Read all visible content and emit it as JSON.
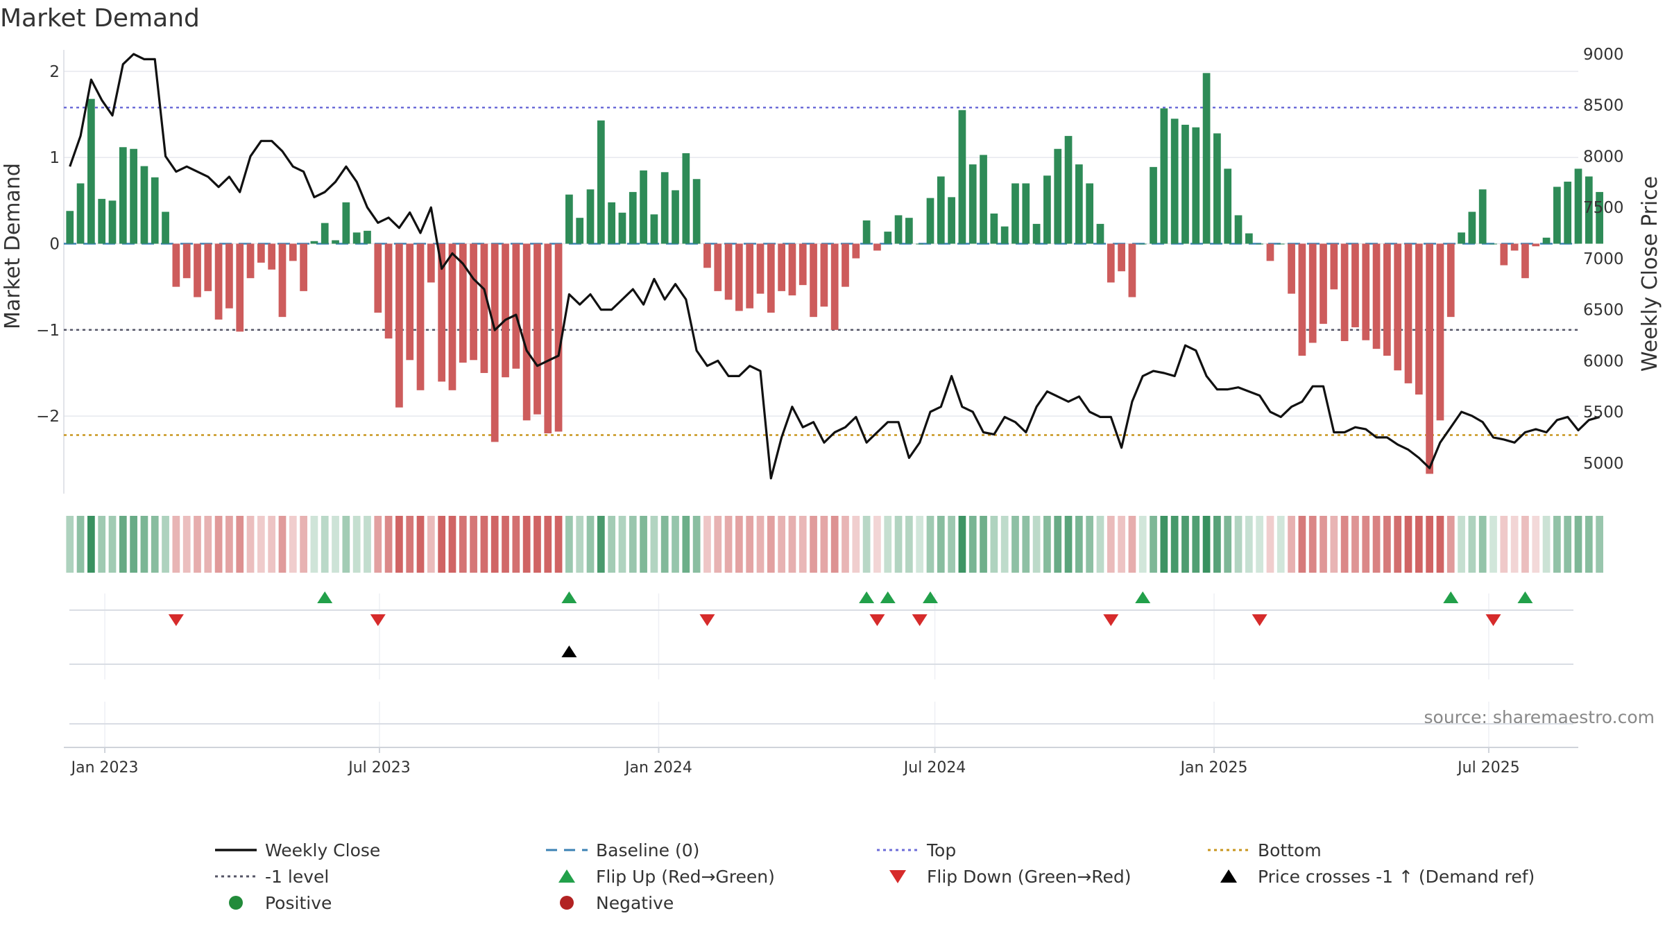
{
  "chart_data": {
    "type": "bar",
    "title": "Market Demand",
    "ylabel": "Market Demand",
    "y2label": "Weekly Close Price",
    "ylim": [
      -2.9,
      2.2
    ],
    "y_ticks": [
      2,
      1,
      0,
      -1,
      -2
    ],
    "y_tick_labels": [
      "2",
      "1",
      "0",
      "−1",
      "−2"
    ],
    "y2lim": [
      4700,
      9000
    ],
    "y2_ticks": [
      9000,
      8500,
      8000,
      7500,
      7000,
      6500,
      6000,
      5500,
      5000
    ],
    "x_start": "2022-12-05",
    "x_end": "2025-08-29",
    "x_ticks": [
      {
        "date": "2023-01-01",
        "label": "Jan 2023"
      },
      {
        "date": "2023-07-01",
        "label": "Jul 2023"
      },
      {
        "date": "2024-01-01",
        "label": "Jan 2024"
      },
      {
        "date": "2024-07-01",
        "label": "Jul 2024"
      },
      {
        "date": "2025-01-01",
        "label": "Jan 2025"
      },
      {
        "date": "2025-07-01",
        "label": "Jul 2025"
      }
    ],
    "first_week": "2022-12-09",
    "demand": [
      0.38,
      0.7,
      1.68,
      0.52,
      0.5,
      1.12,
      1.1,
      0.9,
      0.77,
      0.37,
      -0.5,
      -0.4,
      -0.62,
      -0.55,
      -0.88,
      -0.75,
      -1.02,
      -0.4,
      -0.22,
      -0.3,
      -0.85,
      -0.2,
      -0.55,
      0.03,
      0.24,
      0.04,
      0.48,
      0.13,
      0.15,
      -0.8,
      -1.1,
      -1.9,
      -1.35,
      -1.7,
      -0.45,
      -1.6,
      -1.7,
      -1.38,
      -1.35,
      -1.5,
      -2.3,
      -1.55,
      -1.45,
      -2.05,
      -1.98,
      -2.2,
      -2.18,
      0.57,
      0.3,
      0.63,
      1.43,
      0.48,
      0.36,
      0.6,
      0.85,
      0.34,
      0.83,
      0.62,
      1.05,
      0.75,
      -0.28,
      -0.55,
      -0.65,
      -0.78,
      -0.75,
      -0.58,
      -0.8,
      -0.55,
      -0.6,
      -0.48,
      -0.85,
      -0.73,
      -1.0,
      -0.5,
      -0.17,
      0.27,
      -0.08,
      0.14,
      0.33,
      0.3,
      0.0,
      0.53,
      0.78,
      0.54,
      1.55,
      0.92,
      1.03,
      0.35,
      0.2,
      0.7,
      0.7,
      0.23,
      0.79,
      1.1,
      1.25,
      0.92,
      0.7,
      0.23,
      -0.45,
      -0.32,
      -0.62,
      0.0,
      0.89,
      1.57,
      1.45,
      1.38,
      1.35,
      1.98,
      1.28,
      0.87,
      0.33,
      0.12,
      0.0,
      -0.2,
      0.0,
      -0.58,
      -1.3,
      -1.15,
      -0.93,
      -0.53,
      -1.13,
      -0.97,
      -1.12,
      -1.22,
      -1.3,
      -1.47,
      -1.62,
      -1.75,
      -2.67,
      -2.05,
      -0.85,
      0.13,
      0.37,
      0.63,
      0.0,
      -0.25,
      -0.08,
      -0.4,
      -0.03,
      0.07,
      0.66,
      0.72,
      0.87,
      0.78,
      0.6
    ],
    "price": [
      7900,
      8200,
      8750,
      8550,
      8400,
      8900,
      9000,
      8950,
      8950,
      8000,
      7850,
      7900,
      7850,
      7800,
      7700,
      7800,
      7650,
      8000,
      8150,
      8150,
      8050,
      7900,
      7850,
      7600,
      7650,
      7750,
      7900,
      7750,
      7500,
      7350,
      7400,
      7300,
      7450,
      7250,
      7500,
      6900,
      7050,
      6950,
      6800,
      6700,
      6300,
      6400,
      6450,
      6100,
      5950,
      6000,
      6050,
      6650,
      6550,
      6650,
      6500,
      6500,
      6600,
      6700,
      6550,
      6800,
      6600,
      6750,
      6600,
      6100,
      5950,
      6000,
      5850,
      5850,
      5950,
      5900,
      4850,
      5250,
      5550,
      5350,
      5400,
      5200,
      5300,
      5350,
      5450,
      5200,
      5300,
      5400,
      5400,
      5050,
      5200,
      5500,
      5550,
      5850,
      5550,
      5500,
      5300,
      5280,
      5450,
      5400,
      5300,
      5550,
      5700,
      5650,
      5600,
      5650,
      5500,
      5450,
      5450,
      5150,
      5600,
      5850,
      5900,
      5880,
      5850,
      6150,
      6100,
      5850,
      5720,
      5720,
      5740,
      5700,
      5660,
      5500,
      5450,
      5550,
      5600,
      5750,
      5750,
      5300,
      5300,
      5350,
      5330,
      5250,
      5250,
      5180,
      5130,
      5050,
      4950,
      5200,
      5350,
      5500,
      5460,
      5400,
      5250,
      5230,
      5200,
      5300,
      5330,
      5300,
      5420,
      5450,
      5320,
      5420,
      5450
    ],
    "baseline": 0,
    "top_level": 1.58,
    "ref_level": -1,
    "bottom_level": -2.22,
    "flip_up_weeks": [
      24,
      47,
      75,
      77,
      81,
      101,
      130,
      137
    ],
    "flip_down_weeks": [
      10,
      29,
      60,
      76,
      80,
      98,
      112,
      134
    ],
    "price_cross_weeks": [
      47
    ],
    "source": "source: sharemaestro.com",
    "legend": [
      {
        "label": "Weekly Close",
        "symbol": "line",
        "color": "#111111"
      },
      {
        "label": "Baseline (0)",
        "symbol": "dashed",
        "color": "#3b82b4"
      },
      {
        "label": "Top",
        "symbol": "dotted",
        "color": "#6c6cd8"
      },
      {
        "label": "Bottom",
        "symbol": "dotted",
        "color": "#c8961e"
      },
      {
        "label": "-1 level",
        "symbol": "dotted",
        "color": "#555566"
      },
      {
        "label": "Flip Up (Red→Green)",
        "symbol": "triangle-up",
        "color": "#22a04a"
      },
      {
        "label": "Flip Down (Green→Red)",
        "symbol": "triangle-down",
        "color": "#d62b2b"
      },
      {
        "label": "Price crosses -1 ↑ (Demand ref)",
        "symbol": "triangle-up",
        "color": "#000000"
      },
      {
        "label": "Positive",
        "symbol": "circle",
        "color": "#228b3a"
      },
      {
        "label": "Negative",
        "symbol": "circle",
        "color": "#b22222"
      }
    ],
    "colors": {
      "positive_bar": "#2e8b57",
      "negative_bar": "#cd5c5c",
      "price_line": "#111111",
      "baseline": "#3b82b4",
      "top": "#6c6cd8",
      "bottom": "#c8961e",
      "ref": "#555566"
    }
  }
}
